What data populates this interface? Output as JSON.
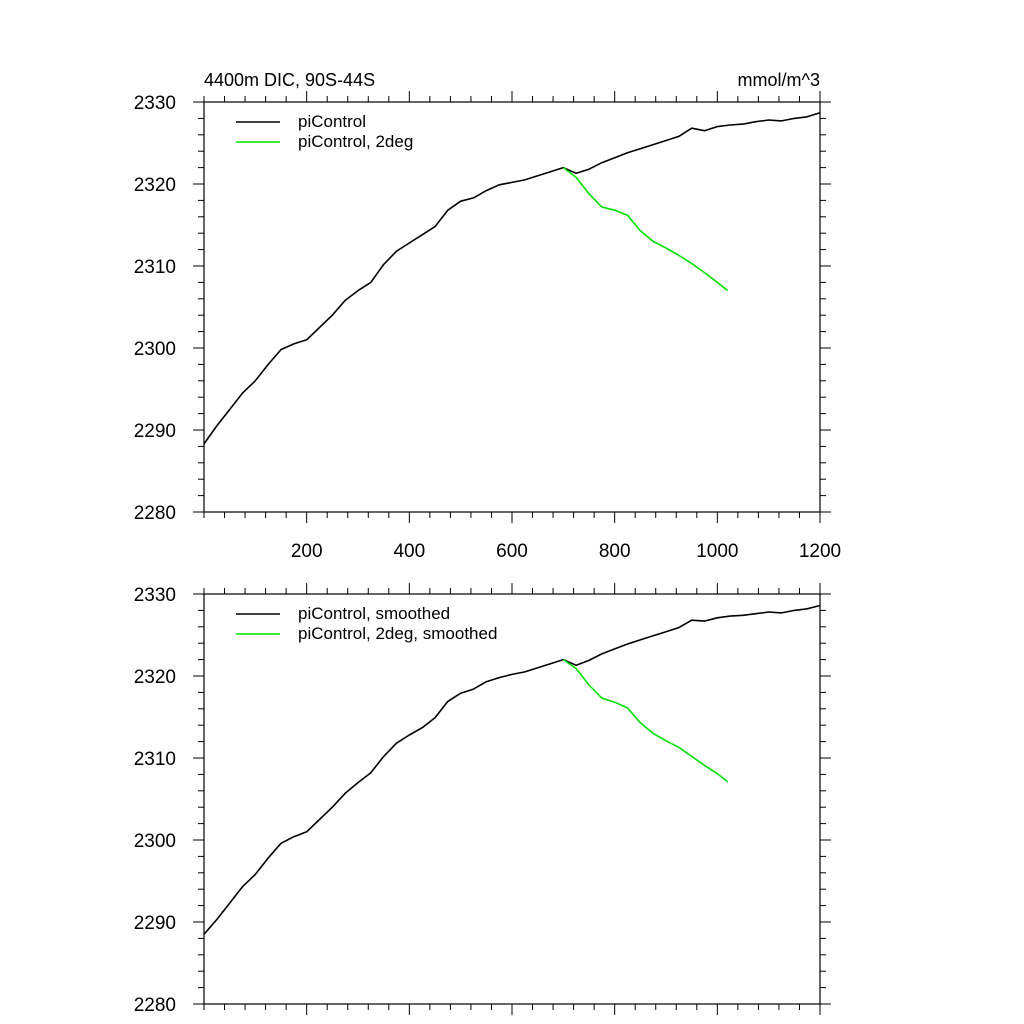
{
  "header": {
    "left": "4400m DIC, 90S-44S",
    "right": "mmol/m^3"
  },
  "colors": {
    "black": "#000000",
    "green": "#00dd00"
  },
  "chart_data": [
    {
      "type": "line",
      "xlim": [
        0,
        1200
      ],
      "ylim": [
        2280,
        2330
      ],
      "xticks": [
        200,
        400,
        600,
        800,
        1000,
        1200
      ],
      "yticks": [
        2280,
        2290,
        2300,
        2310,
        2320,
        2330
      ],
      "xtick_labels": [
        "200",
        "400",
        "600",
        "800",
        "1000",
        "1200"
      ],
      "ytick_labels": [
        "2280",
        "2290",
        "2300",
        "2310",
        "2320",
        "2330"
      ],
      "legend_position": "top-left",
      "series": [
        {
          "name": "piControl",
          "color": "#000000",
          "x": [
            0,
            25,
            50,
            75,
            100,
            125,
            150,
            175,
            200,
            225,
            250,
            275,
            300,
            325,
            350,
            375,
            400,
            425,
            450,
            475,
            500,
            525,
            550,
            575,
            600,
            625,
            650,
            675,
            700,
            725,
            750,
            775,
            800,
            825,
            850,
            875,
            900,
            925,
            950,
            975,
            1000,
            1025,
            1050,
            1075,
            1100,
            1125,
            1150,
            1175,
            1200
          ],
          "y": [
            2288.3,
            2290.5,
            2292.5,
            2294.5,
            2296.0,
            2298.0,
            2299.8,
            2300.5,
            2301.0,
            2302.5,
            2304.0,
            2305.8,
            2307.0,
            2308.0,
            2310.2,
            2311.8,
            2312.8,
            2313.8,
            2314.8,
            2316.8,
            2317.9,
            2318.3,
            2319.2,
            2319.9,
            2320.2,
            2320.5,
            2321.0,
            2321.5,
            2322.0,
            2321.3,
            2321.8,
            2322.6,
            2323.2,
            2323.8,
            2324.3,
            2324.8,
            2325.3,
            2325.8,
            2326.8,
            2326.5,
            2327.0,
            2327.2,
            2327.3,
            2327.6,
            2327.8,
            2327.7,
            2328.0,
            2328.2,
            2328.7
          ]
        },
        {
          "name": "piControl, 2deg",
          "color": "#00dd00",
          "x": [
            700,
            725,
            750,
            775,
            800,
            825,
            850,
            875,
            900,
            925,
            950,
            975,
            1000,
            1020
          ],
          "y": [
            2322.0,
            2320.8,
            2318.8,
            2317.2,
            2316.8,
            2316.2,
            2314.3,
            2313.0,
            2312.2,
            2311.3,
            2310.3,
            2309.2,
            2308.0,
            2307.0
          ]
        }
      ]
    },
    {
      "type": "line",
      "xlim": [
        0,
        1200
      ],
      "ylim": [
        2280,
        2330
      ],
      "xticks": [
        200,
        400,
        600,
        800,
        1000,
        1200
      ],
      "yticks": [
        2280,
        2290,
        2300,
        2310,
        2320,
        2330
      ],
      "ytick_labels": [
        "2280",
        "2290",
        "2300",
        "2310",
        "2320",
        "2330"
      ],
      "legend_position": "top-left",
      "series": [
        {
          "name": "piControl, smoothed",
          "color": "#000000",
          "x": [
            0,
            25,
            50,
            75,
            100,
            125,
            150,
            175,
            200,
            225,
            250,
            275,
            300,
            325,
            350,
            375,
            400,
            425,
            450,
            475,
            500,
            525,
            550,
            575,
            600,
            625,
            650,
            675,
            700,
            725,
            750,
            775,
            800,
            825,
            850,
            875,
            900,
            925,
            950,
            975,
            1000,
            1025,
            1050,
            1075,
            1100,
            1125,
            1150,
            1175,
            1200
          ],
          "y": [
            2288.5,
            2290.3,
            2292.3,
            2294.3,
            2295.8,
            2297.8,
            2299.6,
            2300.4,
            2301.0,
            2302.5,
            2304.0,
            2305.7,
            2307.0,
            2308.2,
            2310.2,
            2311.8,
            2312.8,
            2313.7,
            2314.9,
            2316.9,
            2317.9,
            2318.4,
            2319.3,
            2319.8,
            2320.2,
            2320.5,
            2321.0,
            2321.5,
            2322.0,
            2321.3,
            2321.9,
            2322.7,
            2323.3,
            2323.9,
            2324.4,
            2324.9,
            2325.4,
            2325.9,
            2326.8,
            2326.7,
            2327.1,
            2327.3,
            2327.4,
            2327.6,
            2327.8,
            2327.7,
            2328.0,
            2328.2,
            2328.6
          ]
        },
        {
          "name": "piControl, 2deg, smoothed",
          "color": "#00dd00",
          "x": [
            700,
            725,
            750,
            775,
            800,
            825,
            850,
            875,
            900,
            925,
            950,
            975,
            1000,
            1020
          ],
          "y": [
            2322.0,
            2320.9,
            2318.9,
            2317.3,
            2316.8,
            2316.1,
            2314.3,
            2313.0,
            2312.1,
            2311.3,
            2310.2,
            2309.1,
            2308.1,
            2307.1
          ]
        }
      ]
    }
  ]
}
